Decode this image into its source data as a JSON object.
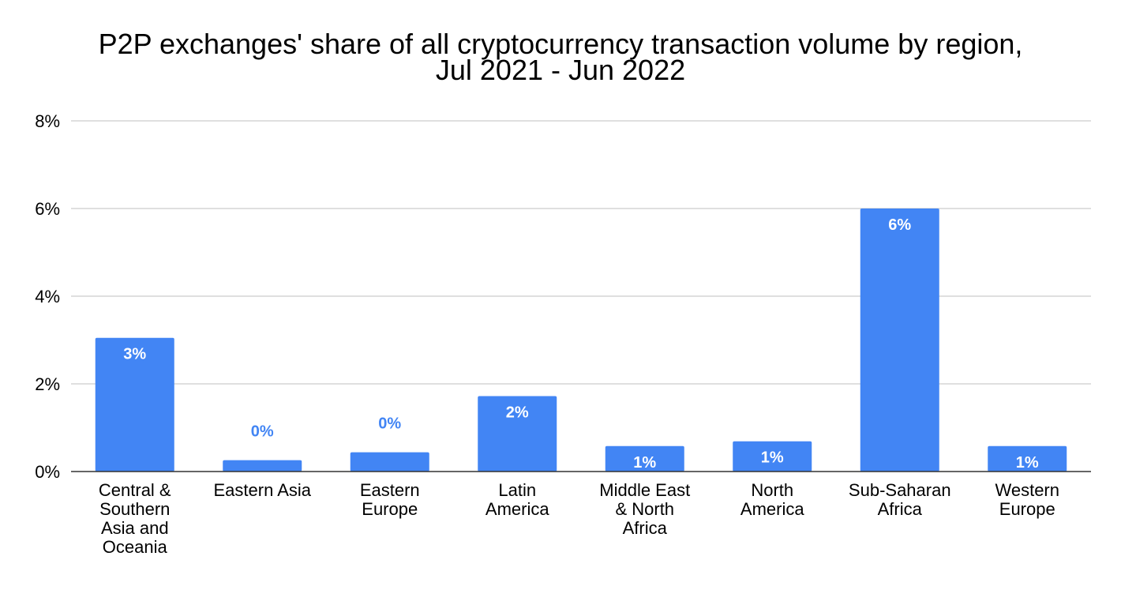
{
  "chart_data": {
    "type": "bar",
    "title_lines": [
      "P2P exchanges' share of all cryptocurrency transaction volume by region,",
      "Jul 2021 - Jun 2022"
    ],
    "categories": [
      [
        "Central &",
        "Southern",
        "Asia and",
        "Oceania"
      ],
      [
        "Eastern Asia"
      ],
      [
        "Eastern",
        "Europe"
      ],
      [
        "Latin",
        "America"
      ],
      [
        "Middle East",
        "& North",
        "Africa"
      ],
      [
        "North",
        "America"
      ],
      [
        "Sub-Saharan",
        "Africa"
      ],
      [
        "Western",
        "Europe"
      ]
    ],
    "values": [
      3.05,
      0.26,
      0.44,
      1.72,
      0.58,
      0.69,
      6.0,
      0.58
    ],
    "data_labels": [
      "3%",
      "0%",
      "0%",
      "2%",
      "1%",
      "1%",
      "6%",
      "1%"
    ],
    "yticks": [
      0,
      2,
      4,
      6,
      8
    ],
    "ytick_labels": [
      "0%",
      "2%",
      "4%",
      "6%",
      "8%"
    ],
    "ylim": [
      0,
      8
    ],
    "xlabel": "",
    "ylabel": "",
    "grid": true,
    "bar_color": "#4285f4",
    "grid_color": "#cccccc",
    "axis_color": "#333333"
  }
}
